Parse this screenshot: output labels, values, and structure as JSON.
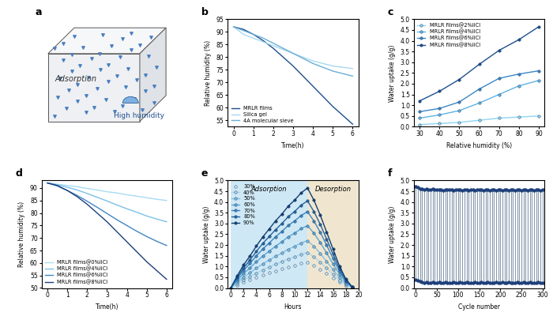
{
  "chart_data": [
    {
      "panel_label": "a",
      "type": "diagram",
      "annotations": [
        "Adsorption",
        "High humidity"
      ]
    },
    {
      "panel_label": "b",
      "type": "line",
      "x_label": "Time(h)",
      "y_label": "Relative humidity (%)",
      "x": [
        0,
        0.5,
        1,
        1.5,
        2,
        2.5,
        3,
        3.5,
        4,
        4.5,
        5,
        5.5,
        6
      ],
      "xlim": [
        -0.3,
        6.3
      ],
      "xticks": [
        0,
        1,
        2,
        3,
        4,
        5,
        6
      ],
      "ylim": [
        52.5,
        95
      ],
      "yticks": [
        55,
        60,
        65,
        70,
        75,
        80,
        85,
        90,
        95
      ],
      "legend": "lower left",
      "series": [
        {
          "name": "MRLR films",
          "color": "#1f4e8c",
          "values": [
            92,
            91,
            89,
            86.5,
            83.5,
            80,
            76.5,
            72.5,
            68.5,
            64.5,
            60.5,
            57,
            53.5
          ]
        },
        {
          "name": "Silica gel",
          "color": "#a8d8f0",
          "values": [
            92,
            89,
            87.5,
            86,
            84.5,
            83,
            81.5,
            80,
            78.5,
            77.5,
            76.5,
            76,
            75.5
          ]
        },
        {
          "name": "4A molecular sieve",
          "color": "#6aaed6",
          "values": [
            92,
            90.5,
            89,
            87.5,
            85.5,
            83.5,
            81.5,
            79.5,
            77.5,
            76,
            74.5,
            73.5,
            72.5
          ]
        }
      ]
    },
    {
      "panel_label": "c",
      "type": "line",
      "x_label": "Relative humidity (%)",
      "y_label": "Water uptake (g/g)",
      "x": [
        30,
        40,
        50,
        60,
        70,
        80,
        90
      ],
      "xlim": [
        27,
        93
      ],
      "xticks": [
        30,
        40,
        50,
        60,
        70,
        80,
        90
      ],
      "ylim": [
        0,
        5.0
      ],
      "yticks": [
        0.0,
        0.5,
        1.0,
        1.5,
        2.0,
        2.5,
        3.0,
        3.5,
        4.0,
        4.5,
        5.0
      ],
      "legend": "upper left",
      "marker": "o",
      "series": [
        {
          "name": "MRLR films@2%liCl",
          "color": "#8fd4f2",
          "values": [
            0.1,
            0.15,
            0.2,
            0.3,
            0.4,
            0.45,
            0.5
          ]
        },
        {
          "name": "MRLR films@4%liCl",
          "color": "#5fb2e3",
          "values": [
            0.4,
            0.55,
            0.75,
            1.1,
            1.5,
            1.9,
            2.15
          ]
        },
        {
          "name": "MRLR films@6%liCl",
          "color": "#3a86c8",
          "values": [
            0.7,
            0.85,
            1.15,
            1.75,
            2.25,
            2.45,
            2.6
          ]
        },
        {
          "name": "MRLR films@8%liCl",
          "color": "#1d4f8f",
          "values": [
            1.2,
            1.65,
            2.2,
            2.9,
            3.55,
            4.05,
            4.65
          ]
        }
      ]
    },
    {
      "panel_label": "d",
      "type": "line",
      "x_label": "Time(h)",
      "y_label": "Relative humidity (%)",
      "x": [
        0,
        0.5,
        1,
        1.5,
        2,
        2.5,
        3,
        3.5,
        4,
        4.5,
        5,
        5.5,
        6
      ],
      "xlim": [
        -0.3,
        6.3
      ],
      "xticks": [
        0,
        1,
        2,
        3,
        4,
        5,
        6
      ],
      "ylim": [
        50,
        93
      ],
      "yticks": [
        50,
        55,
        60,
        65,
        70,
        75,
        80,
        85,
        90
      ],
      "legend": "lower left",
      "series": [
        {
          "name": "MRLR films@0%liCl",
          "color": "#a8dcf2",
          "values": [
            92,
            91.5,
            91,
            90.5,
            89.8,
            89.2,
            88.5,
            88,
            87.3,
            86.7,
            86.1,
            85.5,
            85
          ]
        },
        {
          "name": "MRLR films@4%liCl",
          "color": "#7cc0e8",
          "values": [
            92,
            91.3,
            90.3,
            89.2,
            87.8,
            86.3,
            84.8,
            83.2,
            81.7,
            80.3,
            78.8,
            77.6,
            76.5
          ]
        },
        {
          "name": "MRLR films@6%liCl",
          "color": "#3f86c4",
          "values": [
            92,
            90.8,
            89,
            87,
            84.7,
            82.3,
            79.8,
            77.3,
            75,
            72.7,
            70.6,
            68.7,
            67
          ]
        },
        {
          "name": "MRLR films@8%liCl",
          "color": "#1d3f7a",
          "values": [
            92,
            91,
            89,
            86.5,
            83.5,
            80,
            76.5,
            72.5,
            68.5,
            64.5,
            60.5,
            57,
            53.5
          ]
        }
      ]
    },
    {
      "panel_label": "e",
      "type": "line",
      "x_label": "Hours",
      "y_label": "Water uptake (g/g)",
      "x": [
        0,
        1,
        2,
        3,
        4,
        5,
        6,
        7,
        8,
        9,
        10,
        11,
        12,
        13,
        14,
        15,
        16,
        17,
        18,
        19
      ],
      "xlim": [
        -0.5,
        20
      ],
      "xticks": [
        0,
        2,
        4,
        6,
        8,
        10,
        12,
        14,
        16,
        18,
        20
      ],
      "ylim": [
        0,
        5.0
      ],
      "yticks": [
        0.0,
        0.5,
        1.0,
        1.5,
        2.0,
        2.5,
        3.0,
        3.5,
        4.0,
        4.5,
        5.0
      ],
      "legend": "upper left",
      "marker": "o",
      "regions": [
        {
          "label": "Adsorption",
          "start": 0,
          "end": 12,
          "color": "#cfe8f5"
        },
        {
          "label": "Desorption",
          "start": 12,
          "end": 20,
          "color": "#f0e6d0"
        }
      ],
      "series": [
        {
          "name": "30%",
          "color": "#cfe9f5",
          "values": [
            0,
            0.14,
            0.28,
            0.38,
            0.5,
            0.61,
            0.71,
            0.8,
            0.89,
            0.98,
            1.06,
            1.14,
            1.2,
            1.06,
            0.88,
            0.67,
            0.47,
            0.26,
            0.11,
            0.01
          ]
        },
        {
          "name": "40%",
          "color": "#a9d6ee",
          "values": [
            0,
            0.2,
            0.38,
            0.53,
            0.69,
            0.84,
            0.97,
            1.11,
            1.22,
            1.35,
            1.45,
            1.57,
            1.65,
            1.45,
            1.2,
            0.92,
            0.64,
            0.36,
            0.15,
            0.02
          ]
        },
        {
          "name": "50%",
          "color": "#7fc0e4",
          "values": [
            0,
            0.26,
            0.51,
            0.7,
            0.92,
            1.12,
            1.3,
            1.47,
            1.63,
            1.8,
            1.94,
            2.09,
            2.2,
            1.94,
            1.61,
            1.23,
            0.86,
            0.48,
            0.2,
            0.02
          ]
        },
        {
          "name": "60%",
          "color": "#58a6d6",
          "values": [
            0,
            0.35,
            0.67,
            0.93,
            1.22,
            1.48,
            1.71,
            1.94,
            2.15,
            2.38,
            2.55,
            2.76,
            2.9,
            2.55,
            2.12,
            1.62,
            1.13,
            0.64,
            0.26,
            0.03
          ]
        },
        {
          "name": "70%",
          "color": "#3a87c2",
          "values": [
            0,
            0.43,
            0.82,
            1.14,
            1.49,
            1.81,
            2.09,
            2.38,
            2.63,
            2.91,
            3.12,
            3.37,
            3.55,
            3.12,
            2.59,
            1.99,
            1.38,
            0.78,
            0.32,
            0.04
          ]
        },
        {
          "name": "80%",
          "color": "#25649f",
          "values": [
            0,
            0.49,
            0.93,
            1.3,
            1.7,
            2.07,
            2.39,
            2.71,
            3.0,
            3.32,
            3.56,
            3.85,
            4.05,
            3.56,
            2.96,
            2.27,
            1.58,
            0.89,
            0.36,
            0.04
          ]
        },
        {
          "name": "90%",
          "color": "#133f73",
          "values": [
            0,
            0.56,
            1.07,
            1.49,
            1.95,
            2.37,
            2.74,
            3.12,
            3.44,
            3.81,
            4.09,
            4.42,
            4.65,
            4.09,
            3.39,
            2.6,
            1.81,
            1.02,
            0.42,
            0.05
          ]
        }
      ]
    },
    {
      "panel_label": "f",
      "type": "cycle",
      "x_label": "Cycle number",
      "y_label": "Water uptake (g/g)",
      "x": [
        0,
        5,
        10,
        15,
        20,
        25,
        30,
        35,
        40,
        45,
        50,
        55,
        60,
        65,
        70,
        75,
        80,
        85,
        90,
        95,
        100,
        105,
        110,
        115,
        120,
        125,
        130,
        135,
        140,
        145,
        150,
        155,
        160,
        165,
        170,
        175,
        180,
        185,
        190,
        195,
        200,
        205,
        210,
        215,
        220,
        225,
        230,
        235,
        240,
        245,
        250,
        255,
        260,
        265,
        270,
        275,
        280,
        285,
        290,
        295,
        300
      ],
      "xlim": [
        -5,
        305
      ],
      "xticks": [
        0,
        50,
        100,
        150,
        200,
        250,
        300
      ],
      "ylim": [
        0,
        5.0
      ],
      "yticks": [
        0.0,
        0.5,
        1.0,
        1.5,
        2.0,
        2.5,
        3.0,
        3.5,
        4.0,
        4.5,
        5.0
      ],
      "color": "#8a9bb0",
      "marker": "o",
      "series": [
        {
          "color": "#1d3f7a",
          "values": [
            4.72,
            4.68,
            4.62,
            4.6,
            4.58,
            4.6,
            4.57,
            4.58,
            4.6,
            4.56,
            4.58,
            4.57,
            4.59,
            4.55,
            4.57,
            4.58,
            4.56,
            4.57,
            4.55,
            4.58,
            4.56,
            4.57,
            4.55,
            4.56,
            4.58,
            4.55,
            4.57,
            4.56,
            4.55,
            4.57,
            4.56,
            4.58,
            4.55,
            4.56,
            4.57,
            4.55,
            4.56,
            4.58,
            4.55,
            4.57,
            4.56,
            4.55,
            4.57,
            4.56,
            4.55,
            4.58,
            4.56,
            4.55,
            4.57,
            4.56,
            4.55,
            4.57,
            4.56,
            4.55,
            4.57,
            4.56,
            4.55,
            4.56,
            4.57,
            4.55,
            4.56
          ]
        },
        {
          "color": "#1d3f7a",
          "values": [
            0.38,
            0.35,
            0.31,
            0.27,
            0.25,
            0.26,
            0.25,
            0.24,
            0.26,
            0.25,
            0.25,
            0.26,
            0.24,
            0.25,
            0.26,
            0.25,
            0.24,
            0.25,
            0.26,
            0.25,
            0.25,
            0.26,
            0.24,
            0.25,
            0.26,
            0.25,
            0.24,
            0.25,
            0.26,
            0.25,
            0.25,
            0.26,
            0.24,
            0.25,
            0.26,
            0.25,
            0.24,
            0.25,
            0.26,
            0.25,
            0.25,
            0.26,
            0.24,
            0.25,
            0.26,
            0.25,
            0.24,
            0.25,
            0.26,
            0.25,
            0.25,
            0.26,
            0.24,
            0.25,
            0.26,
            0.25,
            0.24,
            0.25,
            0.26,
            0.25,
            0.25
          ]
        }
      ]
    }
  ]
}
